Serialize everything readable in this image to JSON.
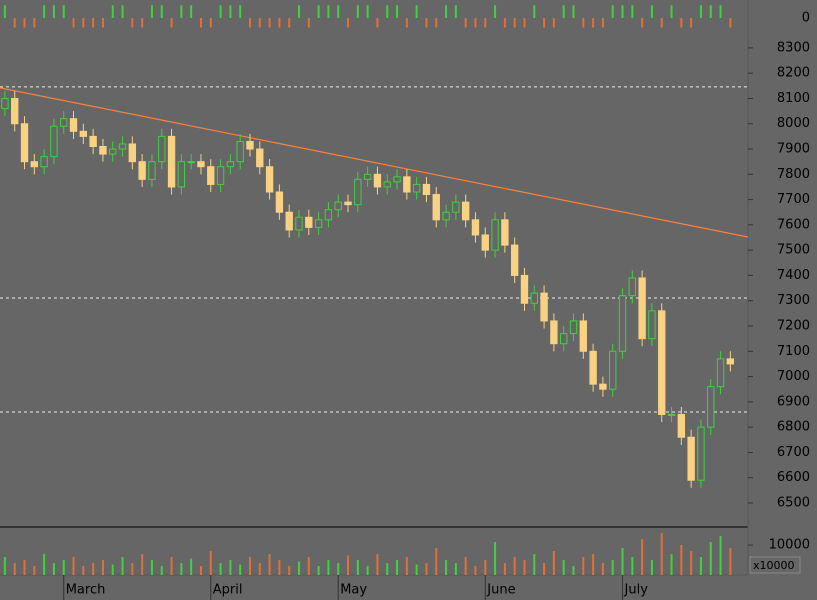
{
  "chart_data": {
    "type": "candlestick",
    "open": [
      8060,
      8100,
      8000,
      7850,
      7830,
      7870,
      7990,
      8020,
      7970,
      7950,
      7910,
      7880,
      7900,
      7920,
      7850,
      7780,
      7850,
      7950,
      7750,
      7850,
      7850,
      7830,
      7760,
      7830,
      7850,
      7930,
      7900,
      7830,
      7730,
      7650,
      7580,
      7630,
      7590,
      7620,
      7660,
      7690,
      7680,
      7780,
      7800,
      7750,
      7770,
      7790,
      7730,
      7760,
      7720,
      7620,
      7650,
      7690,
      7620,
      7560,
      7500,
      7620,
      7520,
      7400,
      7290,
      7330,
      7220,
      7130,
      7170,
      7220,
      7100,
      6970,
      6950,
      7100,
      7320,
      7390,
      7150,
      7260,
      6850,
      6850,
      6760,
      6590,
      6800,
      6960,
      7070
    ],
    "high": [
      8130,
      8130,
      8030,
      7880,
      7900,
      8020,
      8050,
      8050,
      8000,
      7980,
      7940,
      7930,
      7950,
      7950,
      7880,
      7880,
      7980,
      7980,
      7880,
      7880,
      7880,
      7860,
      7860,
      7880,
      7960,
      7960,
      7930,
      7860,
      7760,
      7680,
      7660,
      7660,
      7650,
      7690,
      7720,
      7720,
      7810,
      7830,
      7830,
      7800,
      7820,
      7820,
      7790,
      7790,
      7750,
      7680,
      7720,
      7720,
      7650,
      7590,
      7650,
      7650,
      7550,
      7430,
      7360,
      7360,
      7250,
      7200,
      7250,
      7250,
      7130,
      7000,
      7130,
      7350,
      7420,
      7420,
      7290,
      7290,
      6880,
      6880,
      6790,
      6830,
      6990,
      7100,
      7100
    ],
    "low": [
      8030,
      7970,
      7820,
      7800,
      7800,
      7840,
      7960,
      7940,
      7920,
      7880,
      7850,
      7850,
      7870,
      7820,
      7750,
      7750,
      7820,
      7720,
      7720,
      7820,
      7800,
      7730,
      7730,
      7800,
      7820,
      7870,
      7800,
      7700,
      7620,
      7550,
      7550,
      7560,
      7560,
      7590,
      7630,
      7650,
      7650,
      7750,
      7720,
      7720,
      7740,
      7700,
      7700,
      7690,
      7590,
      7590,
      7620,
      7590,
      7530,
      7470,
      7470,
      7490,
      7370,
      7260,
      7260,
      7190,
      7100,
      7100,
      7140,
      7070,
      6940,
      6920,
      6920,
      7070,
      7290,
      7120,
      7120,
      6820,
      6820,
      6730,
      6560,
      6560,
      6770,
      6930,
      7020
    ],
    "close": [
      8100,
      8000,
      7850,
      7830,
      7870,
      7990,
      8020,
      7970,
      7950,
      7910,
      7880,
      7900,
      7920,
      7850,
      7780,
      7850,
      7950,
      7750,
      7850,
      7850,
      7830,
      7760,
      7830,
      7850,
      7930,
      7900,
      7830,
      7730,
      7650,
      7580,
      7630,
      7590,
      7620,
      7660,
      7690,
      7680,
      7780,
      7800,
      7750,
      7770,
      7790,
      7730,
      7760,
      7720,
      7620,
      7650,
      7690,
      7620,
      7560,
      7500,
      7620,
      7520,
      7400,
      7290,
      7330,
      7220,
      7130,
      7170,
      7220,
      7100,
      6970,
      6950,
      7100,
      7320,
      7390,
      7150,
      7260,
      6850,
      6850,
      6760,
      6590,
      6800,
      6960,
      7070,
      7050
    ],
    "up_color": "#3fd13f",
    "down_color": "#f8d282",
    "ylim": [
      6405,
      8351
    ],
    "yticks": [
      6500,
      6600,
      6700,
      6800,
      6900,
      7000,
      7100,
      7200,
      7300,
      7400,
      7500,
      7600,
      7700,
      7800,
      7900,
      8000,
      8100,
      8200,
      8300
    ],
    "xlim": [
      -0.5,
      75.8
    ],
    "xticks": [
      {
        "value": 6,
        "label": "March"
      },
      {
        "value": 21,
        "label": "April"
      },
      {
        "value": 34,
        "label": "May"
      },
      {
        "value": 49,
        "label": "June"
      },
      {
        "value": 63,
        "label": "July"
      }
    ],
    "hlines": [
      8146,
      7311,
      6860
    ],
    "trendline": [
      8142,
      7552
    ],
    "trendline_color": "#ff7f3f",
    "volume": {
      "values": [
        6000,
        4000,
        5000,
        3000,
        7000,
        4000,
        5000,
        6000,
        3000,
        4000,
        5000,
        3500,
        6000,
        4000,
        7000,
        5000,
        3000,
        6000,
        4000,
        5500,
        3000,
        8000,
        4000,
        5000,
        3500,
        6000,
        4000,
        7000,
        5000,
        3000,
        4500,
        6000,
        3000,
        5000,
        4000,
        6500,
        5000,
        3000,
        7000,
        4000,
        5000,
        6000,
        3500,
        4000,
        9000,
        5000,
        4000,
        6000,
        3000,
        5000,
        11000,
        4000,
        6000,
        5000,
        7000,
        4000,
        8000,
        5000,
        3000,
        6000,
        7000,
        4000,
        5000,
        9000,
        6000,
        12000,
        5000,
        14000,
        7000,
        10000,
        8000,
        6000,
        11000,
        13000,
        9000
      ],
      "ylim": [
        0,
        15700
      ],
      "yticks": [
        10000
      ],
      "unit_label": "x10000"
    },
    "indicator": {
      "values": [
        0.8,
        -0.6,
        -0.6,
        -0.6,
        0.8,
        0.8,
        0.8,
        -0.6,
        -0.6,
        -0.6,
        -0.6,
        0.8,
        0.8,
        -0.6,
        -0.6,
        0.8,
        0.8,
        -0.6,
        0.8,
        0.8,
        -0.6,
        -0.6,
        0.8,
        0.8,
        0.8,
        -0.6,
        -0.6,
        -0.6,
        -0.6,
        -0.6,
        0.8,
        -0.6,
        0.8,
        0.8,
        0.8,
        -0.6,
        0.8,
        0.8,
        -0.6,
        0.8,
        0.8,
        -0.6,
        0.8,
        -0.6,
        -0.6,
        0.8,
        0.8,
        -0.6,
        -0.6,
        -0.6,
        0.8,
        -0.6,
        -0.6,
        -0.6,
        0.8,
        -0.6,
        -0.6,
        0.8,
        0.8,
        -0.6,
        -0.6,
        -0.6,
        0.8,
        0.8,
        0.8,
        -0.6,
        0.8,
        -0.6,
        0.8,
        -0.6,
        -0.6,
        0.8,
        0.8,
        0.8,
        -0.6
      ],
      "ylim": [
        -1,
        1
      ],
      "yticks": [
        0
      ],
      "up_color": "#3fd13f",
      "down_color": "#e0703a"
    }
  }
}
